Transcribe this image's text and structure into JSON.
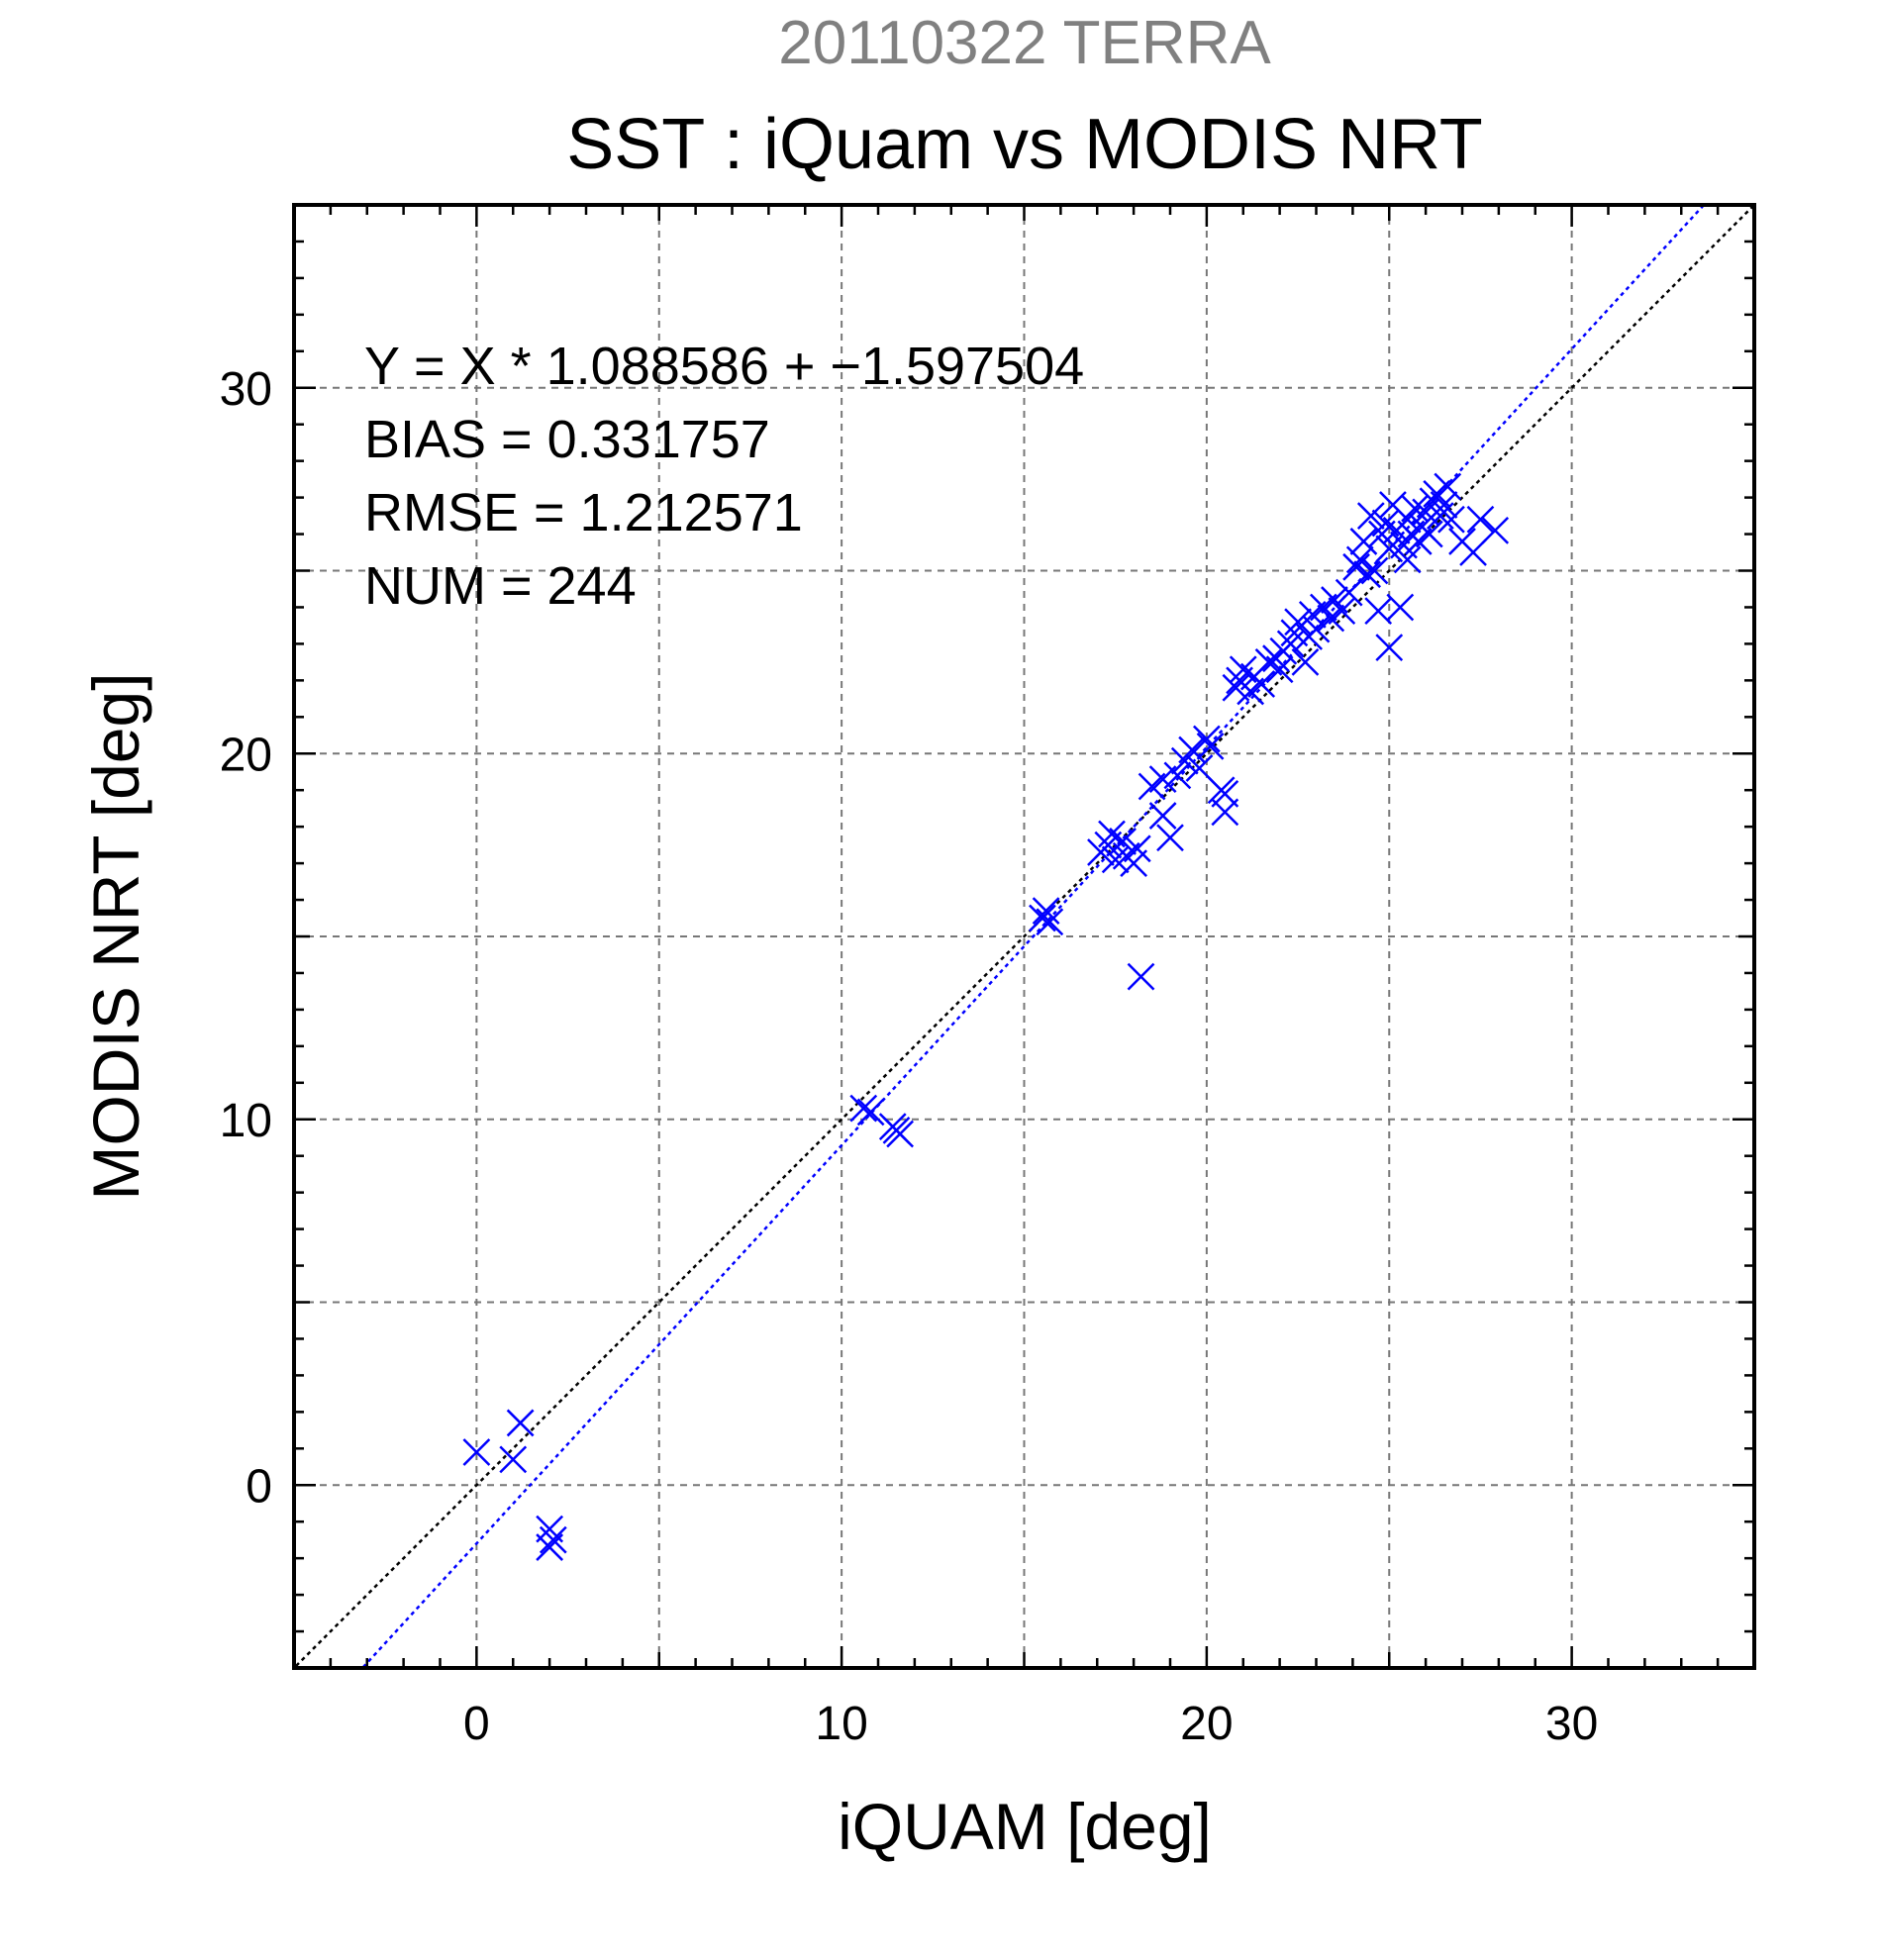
{
  "chart_data": {
    "type": "scatter",
    "suptitle": "20110322 TERRA",
    "title": "SST : iQuam vs MODIS NRT",
    "xlabel": "iQUAM [deg]",
    "ylabel": "MODIS NRT [deg]",
    "xlim": [
      -5,
      35
    ],
    "ylim": [
      -5,
      35
    ],
    "xticks": [
      0,
      10,
      20,
      30
    ],
    "yticks": [
      0,
      10,
      20,
      30
    ],
    "grid": true,
    "marker": "x",
    "color": "#0000ff",
    "stats": [
      "Y = X * 1.088586 + −1.597504",
      "BIAS = 0.331757",
      "RMSE = 1.212571",
      "NUM = 244"
    ],
    "lines": [
      {
        "kind": "one-to-one",
        "color": "#000000",
        "style": "dotted"
      },
      {
        "kind": "regression",
        "slope": 1.088586,
        "intercept": -1.597504,
        "color": "#0000ff",
        "style": "dotted"
      }
    ],
    "points": [
      [
        0.0,
        0.9
      ],
      [
        1.0,
        0.7
      ],
      [
        1.2,
        1.7
      ],
      [
        2.0,
        -1.2
      ],
      [
        2.0,
        -1.7
      ],
      [
        2.1,
        -1.5
      ],
      [
        10.6,
        10.3
      ],
      [
        10.8,
        10.2
      ],
      [
        11.4,
        9.8
      ],
      [
        11.5,
        9.7
      ],
      [
        11.6,
        9.6
      ],
      [
        15.5,
        15.5
      ],
      [
        15.6,
        15.7
      ],
      [
        15.7,
        15.4
      ],
      [
        17.1,
        17.3
      ],
      [
        17.3,
        17.5
      ],
      [
        17.5,
        17.1
      ],
      [
        17.7,
        17.6
      ],
      [
        17.8,
        17.2
      ],
      [
        18.0,
        17.0
      ],
      [
        18.1,
        17.4
      ],
      [
        18.2,
        13.9
      ],
      [
        17.4,
        17.8
      ],
      [
        18.5,
        19.1
      ],
      [
        18.8,
        18.3
      ],
      [
        19.0,
        17.7
      ],
      [
        18.8,
        19.3
      ],
      [
        19.2,
        19.4
      ],
      [
        19.4,
        19.8
      ],
      [
        19.6,
        20.1
      ],
      [
        19.8,
        19.6
      ],
      [
        20.0,
        20.4
      ],
      [
        20.1,
        20.2
      ],
      [
        20.4,
        19.0
      ],
      [
        20.5,
        18.4
      ],
      [
        20.5,
        18.9
      ],
      [
        20.8,
        21.8
      ],
      [
        20.9,
        22.0
      ],
      [
        21.0,
        22.3
      ],
      [
        21.2,
        21.7
      ],
      [
        21.3,
        22.1
      ],
      [
        21.5,
        21.9
      ],
      [
        21.7,
        22.5
      ],
      [
        21.9,
        22.6
      ],
      [
        22.0,
        22.3
      ],
      [
        22.1,
        22.8
      ],
      [
        22.3,
        23.0
      ],
      [
        22.4,
        23.3
      ],
      [
        22.5,
        23.6
      ],
      [
        22.7,
        22.5
      ],
      [
        22.8,
        23.2
      ],
      [
        22.9,
        23.8
      ],
      [
        23.0,
        23.4
      ],
      [
        23.2,
        24.0
      ],
      [
        23.4,
        23.7
      ],
      [
        23.5,
        24.2
      ],
      [
        23.7,
        23.9
      ],
      [
        23.9,
        24.4
      ],
      [
        24.1,
        25.1
      ],
      [
        24.2,
        25.3
      ],
      [
        24.3,
        25.8
      ],
      [
        24.4,
        24.9
      ],
      [
        24.5,
        26.5
      ],
      [
        24.6,
        25.0
      ],
      [
        24.7,
        23.9
      ],
      [
        24.8,
        26.0
      ],
      [
        24.9,
        26.3
      ],
      [
        25.0,
        25.6
      ],
      [
        25.0,
        22.9
      ],
      [
        25.1,
        26.8
      ],
      [
        25.2,
        26.1
      ],
      [
        25.3,
        24.0
      ],
      [
        25.4,
        25.7
      ],
      [
        25.5,
        25.3
      ],
      [
        25.5,
        26.4
      ],
      [
        25.6,
        26.0
      ],
      [
        25.7,
        26.7
      ],
      [
        25.8,
        25.8
      ],
      [
        25.9,
        26.2
      ],
      [
        26.0,
        26.6
      ],
      [
        26.1,
        26.0
      ],
      [
        26.2,
        26.9
      ],
      [
        26.3,
        27.1
      ],
      [
        26.4,
        26.5
      ],
      [
        26.5,
        26.8
      ],
      [
        26.6,
        27.3
      ],
      [
        26.7,
        26.4
      ],
      [
        27.0,
        25.8
      ],
      [
        27.3,
        25.5
      ],
      [
        27.5,
        26.4
      ],
      [
        27.9,
        26.1
      ]
    ]
  }
}
